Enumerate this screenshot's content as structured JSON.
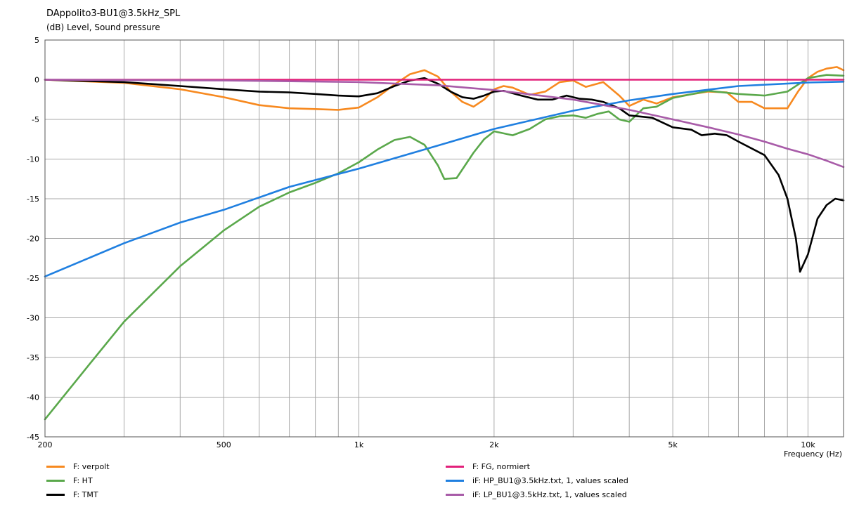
{
  "chart_data": {
    "type": "line",
    "title": "DAppolito3-BU1@3.5kHz_SPL",
    "ylabel": "(dB)  Level, Sound pressure",
    "xlabel": "Frequency  (Hz)",
    "x_scale": "log",
    "xlim": [
      200,
      12000
    ],
    "ylim": [
      -45,
      5
    ],
    "grid": true,
    "x_ticks": [
      {
        "value": 200,
        "label": "200"
      },
      {
        "value": 500,
        "label": "500"
      },
      {
        "value": 1000,
        "label": "1k"
      },
      {
        "value": 2000,
        "label": "2k"
      },
      {
        "value": 5000,
        "label": "5k"
      },
      {
        "value": 10000,
        "label": "10k"
      }
    ],
    "y_ticks": [
      5,
      0,
      -5,
      -10,
      -15,
      -20,
      -25,
      -30,
      -35,
      -40,
      -45
    ],
    "legend_position": "bottom",
    "series": [
      {
        "name": "F: verpolt",
        "color": "#f7891f",
        "points": [
          [
            200,
            0
          ],
          [
            300,
            -0.4
          ],
          [
            400,
            -1.2
          ],
          [
            500,
            -2.2
          ],
          [
            600,
            -3.2
          ],
          [
            700,
            -3.6
          ],
          [
            800,
            -3.7
          ],
          [
            900,
            -3.8
          ],
          [
            1000,
            -3.5
          ],
          [
            1100,
            -2.2
          ],
          [
            1200,
            -0.6
          ],
          [
            1300,
            0.7
          ],
          [
            1400,
            1.2
          ],
          [
            1500,
            0.4
          ],
          [
            1600,
            -1.5
          ],
          [
            1700,
            -2.8
          ],
          [
            1800,
            -3.4
          ],
          [
            1900,
            -2.5
          ],
          [
            2000,
            -1.2
          ],
          [
            2100,
            -0.8
          ],
          [
            2200,
            -1
          ],
          [
            2400,
            -1.9
          ],
          [
            2600,
            -1.5
          ],
          [
            2800,
            -0.3
          ],
          [
            3000,
            -0.1
          ],
          [
            3200,
            -0.9
          ],
          [
            3500,
            -0.3
          ],
          [
            3800,
            -2
          ],
          [
            4000,
            -3.3
          ],
          [
            4300,
            -2.5
          ],
          [
            4600,
            -3
          ],
          [
            5000,
            -2.2
          ],
          [
            6000,
            -1.5
          ],
          [
            6600,
            -1.6
          ],
          [
            7000,
            -2.8
          ],
          [
            7500,
            -2.8
          ],
          [
            8000,
            -3.6
          ],
          [
            9000,
            -3.6
          ],
          [
            9500,
            -1.5
          ],
          [
            10000,
            0.2
          ],
          [
            10500,
            1
          ],
          [
            11000,
            1.4
          ],
          [
            11600,
            1.6
          ],
          [
            12000,
            1.2
          ]
        ]
      },
      {
        "name": "F: HT",
        "color": "#5aa84b",
        "points": [
          [
            200,
            -42.8
          ],
          [
            250,
            -36
          ],
          [
            300,
            -30.5
          ],
          [
            400,
            -23.5
          ],
          [
            500,
            -19
          ],
          [
            600,
            -16
          ],
          [
            700,
            -14.2
          ],
          [
            800,
            -13
          ],
          [
            900,
            -11.8
          ],
          [
            1000,
            -10.4
          ],
          [
            1100,
            -8.8
          ],
          [
            1200,
            -7.6
          ],
          [
            1300,
            -7.2
          ],
          [
            1400,
            -8.2
          ],
          [
            1500,
            -10.8
          ],
          [
            1550,
            -12.5
          ],
          [
            1650,
            -12.4
          ],
          [
            1800,
            -9.2
          ],
          [
            1900,
            -7.5
          ],
          [
            2000,
            -6.5
          ],
          [
            2200,
            -7
          ],
          [
            2400,
            -6.2
          ],
          [
            2600,
            -5
          ],
          [
            2800,
            -4.6
          ],
          [
            3000,
            -4.5
          ],
          [
            3200,
            -4.8
          ],
          [
            3400,
            -4.3
          ],
          [
            3600,
            -4
          ],
          [
            3800,
            -5
          ],
          [
            4000,
            -5.3
          ],
          [
            4300,
            -3.6
          ],
          [
            4600,
            -3.4
          ],
          [
            5000,
            -2.3
          ],
          [
            6000,
            -1.4
          ],
          [
            7000,
            -1.8
          ],
          [
            8000,
            -2
          ],
          [
            9000,
            -1.5
          ],
          [
            10000,
            0.2
          ],
          [
            11000,
            0.6
          ],
          [
            12000,
            0.5
          ]
        ]
      },
      {
        "name": "F: TMT",
        "color": "#000000",
        "points": [
          [
            200,
            0
          ],
          [
            300,
            -0.3
          ],
          [
            400,
            -0.8
          ],
          [
            500,
            -1.2
          ],
          [
            600,
            -1.5
          ],
          [
            700,
            -1.6
          ],
          [
            800,
            -1.8
          ],
          [
            900,
            -2
          ],
          [
            1000,
            -2.1
          ],
          [
            1100,
            -1.7
          ],
          [
            1200,
            -0.8
          ],
          [
            1300,
            -0.1
          ],
          [
            1400,
            0.2
          ],
          [
            1500,
            -0.5
          ],
          [
            1600,
            -1.5
          ],
          [
            1700,
            -2.2
          ],
          [
            1800,
            -2.4
          ],
          [
            1900,
            -2
          ],
          [
            2000,
            -1.5
          ],
          [
            2100,
            -1.4
          ],
          [
            2300,
            -2
          ],
          [
            2500,
            -2.5
          ],
          [
            2700,
            -2.5
          ],
          [
            2900,
            -2
          ],
          [
            3100,
            -2.4
          ],
          [
            3300,
            -2.5
          ],
          [
            3500,
            -2.8
          ],
          [
            3800,
            -3.6
          ],
          [
            4000,
            -4.5
          ],
          [
            4500,
            -4.8
          ],
          [
            5000,
            -6
          ],
          [
            5500,
            -6.3
          ],
          [
            5800,
            -7
          ],
          [
            6200,
            -6.8
          ],
          [
            6600,
            -7
          ],
          [
            7000,
            -7.8
          ],
          [
            8000,
            -9.5
          ],
          [
            8600,
            -12
          ],
          [
            9000,
            -15
          ],
          [
            9400,
            -20
          ],
          [
            9600,
            -24.2
          ],
          [
            10000,
            -22
          ],
          [
            10500,
            -17.5
          ],
          [
            11000,
            -15.8
          ],
          [
            11500,
            -15
          ],
          [
            12000,
            -15.2
          ]
        ]
      },
      {
        "name": "F: FG, normiert",
        "color": "#e2207a",
        "points": [
          [
            200,
            0
          ],
          [
            12000,
            0
          ]
        ]
      },
      {
        "name": "iF: HP_BU1@3.5kHz.txt, 1, values scaled",
        "color": "#1f7fe0",
        "points": [
          [
            200,
            -24.8
          ],
          [
            300,
            -20.6
          ],
          [
            400,
            -18
          ],
          [
            500,
            -16.4
          ],
          [
            700,
            -13.5
          ],
          [
            1000,
            -11.2
          ],
          [
            1500,
            -8.3
          ],
          [
            2000,
            -6.2
          ],
          [
            3000,
            -3.9
          ],
          [
            4000,
            -2.6
          ],
          [
            5000,
            -1.8
          ],
          [
            7000,
            -0.8
          ],
          [
            10000,
            -0.35
          ],
          [
            12000,
            -0.25
          ]
        ]
      },
      {
        "name": "iF: LP_BU1@3.5kHz.txt, 1, values scaled",
        "color": "#a85ba8",
        "points": [
          [
            200,
            0
          ],
          [
            500,
            -0.1
          ],
          [
            1000,
            -0.3
          ],
          [
            1500,
            -0.7
          ],
          [
            2000,
            -1.3
          ],
          [
            3000,
            -2.5
          ],
          [
            4000,
            -3.8
          ],
          [
            5000,
            -5
          ],
          [
            6000,
            -6
          ],
          [
            7000,
            -6.9
          ],
          [
            8000,
            -7.8
          ],
          [
            9000,
            -8.7
          ],
          [
            10000,
            -9.4
          ],
          [
            11000,
            -10.2
          ],
          [
            12000,
            -11
          ]
        ]
      }
    ]
  }
}
